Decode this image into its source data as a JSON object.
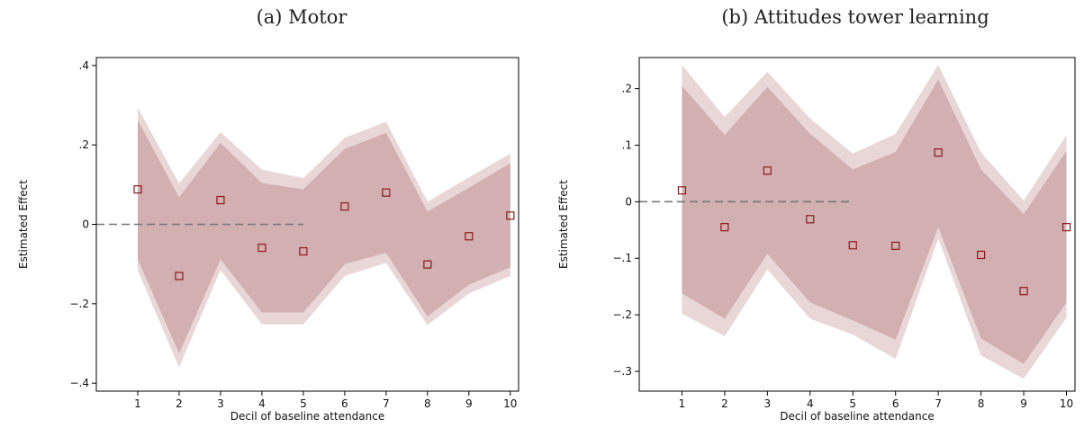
{
  "chart_data": [
    {
      "type": "area",
      "panel": "a",
      "title": "(a) Motor",
      "xlabel": "Decil of baseline attendance",
      "ylabel": "Estimated Effect",
      "xlim": [
        0,
        10.2
      ],
      "ylim": [
        -0.42,
        0.42
      ],
      "xticks": [
        1,
        2,
        3,
        4,
        5,
        6,
        7,
        8,
        9,
        10
      ],
      "xtick_labels": [
        "1",
        "2",
        "3",
        "4",
        "5",
        "6",
        "7",
        "8",
        "9",
        "10"
      ],
      "yticks": [
        -0.4,
        -0.2,
        0,
        0.2,
        0.4
      ],
      "ytick_labels": [
        "-.4",
        "-.2",
        "0",
        ".2",
        ".4"
      ],
      "reference_line": {
        "y": 0,
        "x_from": 0,
        "x_to": 5,
        "style": "dashed"
      },
      "x": [
        1,
        2,
        3,
        4,
        5,
        6,
        7,
        8,
        9,
        10
      ],
      "estimates": [
        0.088,
        -0.13,
        0.061,
        -0.059,
        -0.068,
        0.045,
        0.08,
        -0.101,
        -0.03,
        0.022
      ],
      "ci_inner_upper": [
        0.262,
        0.068,
        0.205,
        0.104,
        0.088,
        0.19,
        0.23,
        0.032,
        0.092,
        0.154
      ],
      "ci_inner_lower": [
        -0.088,
        -0.325,
        -0.088,
        -0.222,
        -0.222,
        -0.1,
        -0.072,
        -0.232,
        -0.152,
        -0.108
      ],
      "ci_outer_upper": [
        0.294,
        0.103,
        0.232,
        0.138,
        0.116,
        0.218,
        0.258,
        0.057,
        0.118,
        0.178
      ],
      "ci_outer_lower": [
        -0.116,
        -0.36,
        -0.115,
        -0.252,
        -0.252,
        -0.13,
        -0.097,
        -0.254,
        -0.174,
        -0.13
      ],
      "colors": {
        "inner_band": "#d2afb1",
        "outer_band": "#e9d6d7",
        "marker": "#8b1a1a",
        "reference_line": "#777777"
      }
    },
    {
      "type": "area",
      "panel": "b",
      "title": "(b) Attitudes tower learning",
      "xlabel": "Decil of baseline attendance",
      "ylabel": "Estimated Effect",
      "xlim": [
        0,
        10.2
      ],
      "ylim": [
        -0.335,
        0.255
      ],
      "xticks": [
        1,
        2,
        3,
        4,
        5,
        6,
        7,
        8,
        9,
        10
      ],
      "xtick_labels": [
        "1",
        "2",
        "3",
        "4",
        "5",
        "6",
        "7",
        "8",
        "9",
        "10"
      ],
      "yticks": [
        -0.3,
        -0.2,
        -0.1,
        0,
        0.1,
        0.2
      ],
      "ytick_labels": [
        "-.3",
        "-.2",
        "-.1",
        "0",
        ".1",
        ".2"
      ],
      "reference_line": {
        "y": 0,
        "x_from": 0,
        "x_to": 5,
        "style": "dashed"
      },
      "x": [
        1,
        2,
        3,
        4,
        5,
        6,
        7,
        8,
        9,
        10
      ],
      "estimates": [
        0.02,
        -0.045,
        0.055,
        -0.031,
        -0.077,
        -0.078,
        0.087,
        -0.094,
        -0.158,
        -0.045
      ],
      "ci_inner_upper": [
        0.205,
        0.118,
        0.203,
        0.12,
        0.057,
        0.088,
        0.216,
        0.057,
        -0.022,
        0.09
      ],
      "ci_inner_lower": [
        -0.162,
        -0.207,
        -0.092,
        -0.178,
        -0.21,
        -0.244,
        -0.045,
        -0.242,
        -0.287,
        -0.178
      ],
      "ci_outer_upper": [
        0.242,
        0.15,
        0.23,
        0.147,
        0.085,
        0.12,
        0.242,
        0.087,
        0.002,
        0.118
      ],
      "ci_outer_lower": [
        -0.198,
        -0.238,
        -0.12,
        -0.207,
        -0.235,
        -0.278,
        -0.065,
        -0.272,
        -0.313,
        -0.205
      ],
      "colors": {
        "inner_band": "#d2afb1",
        "outer_band": "#e9d6d7",
        "marker": "#8b1a1a",
        "reference_line": "#777777"
      }
    }
  ]
}
